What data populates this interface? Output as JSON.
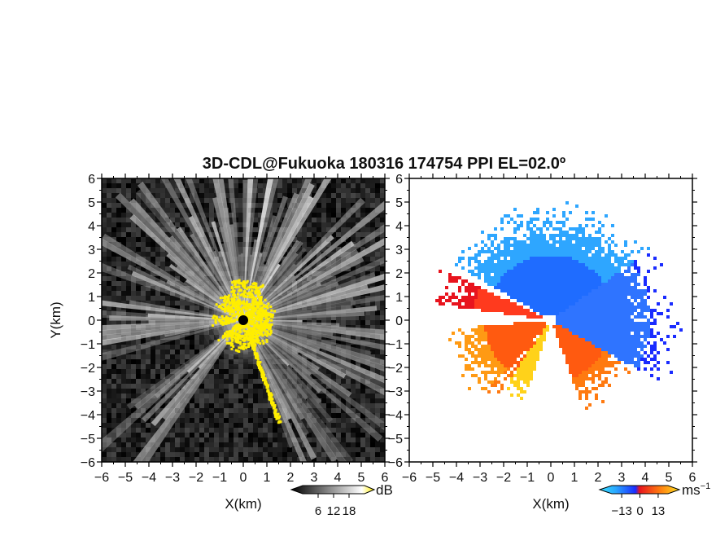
{
  "chart_data": [
    {
      "type": "heatmap",
      "title": "3D-CDL@Fukuoka 180316 174754 PPI EL=02.0º",
      "panel": "left",
      "quantity": "SNR",
      "xlabel": "X(km)",
      "ylabel": "Y(km)",
      "xlim": [
        -6,
        6
      ],
      "ylim": [
        -6,
        6
      ],
      "x_ticks": [
        "−6",
        "−5",
        "−4",
        "−3",
        "−2",
        "−1",
        "0",
        "1",
        "2",
        "3",
        "4",
        "5",
        "6"
      ],
      "y_ticks": [
        "6",
        "5",
        "4",
        "3",
        "2",
        "1",
        "0",
        "−1",
        "−2",
        "−3",
        "−4",
        "−5",
        "−6"
      ],
      "background_color": "#0a0a0a",
      "highlight_color": "#ffee00",
      "colorbar": {
        "unit": "dB",
        "ticks": [
          6,
          12,
          18
        ],
        "range": [
          0,
          24
        ]
      }
    },
    {
      "type": "heatmap",
      "panel": "right",
      "quantity": "radial velocity",
      "xlabel": "X(km)",
      "xlim": [
        -6,
        6
      ],
      "ylim": [
        -6,
        6
      ],
      "x_ticks": [
        "−6",
        "−5",
        "−4",
        "−3",
        "−2",
        "−1",
        "0",
        "1",
        "2",
        "3",
        "4",
        "5",
        "6"
      ],
      "y_ticks": [
        "6",
        "5",
        "4",
        "3",
        "2",
        "1",
        "0",
        "−1",
        "−2",
        "−3",
        "−4",
        "−5",
        "−6"
      ],
      "colorbar": {
        "unit": "ms",
        "unit_exp": "−1",
        "ticks": [
          "−13",
          "0",
          "13"
        ],
        "range": [
          -20,
          20
        ]
      },
      "colors": {
        "negative": "#1a4fff",
        "near_zero": "#3fa0ff",
        "positive": "#ff5a10",
        "strong_positive": "#ffd21a",
        "edge": "#e8141e"
      }
    }
  ]
}
